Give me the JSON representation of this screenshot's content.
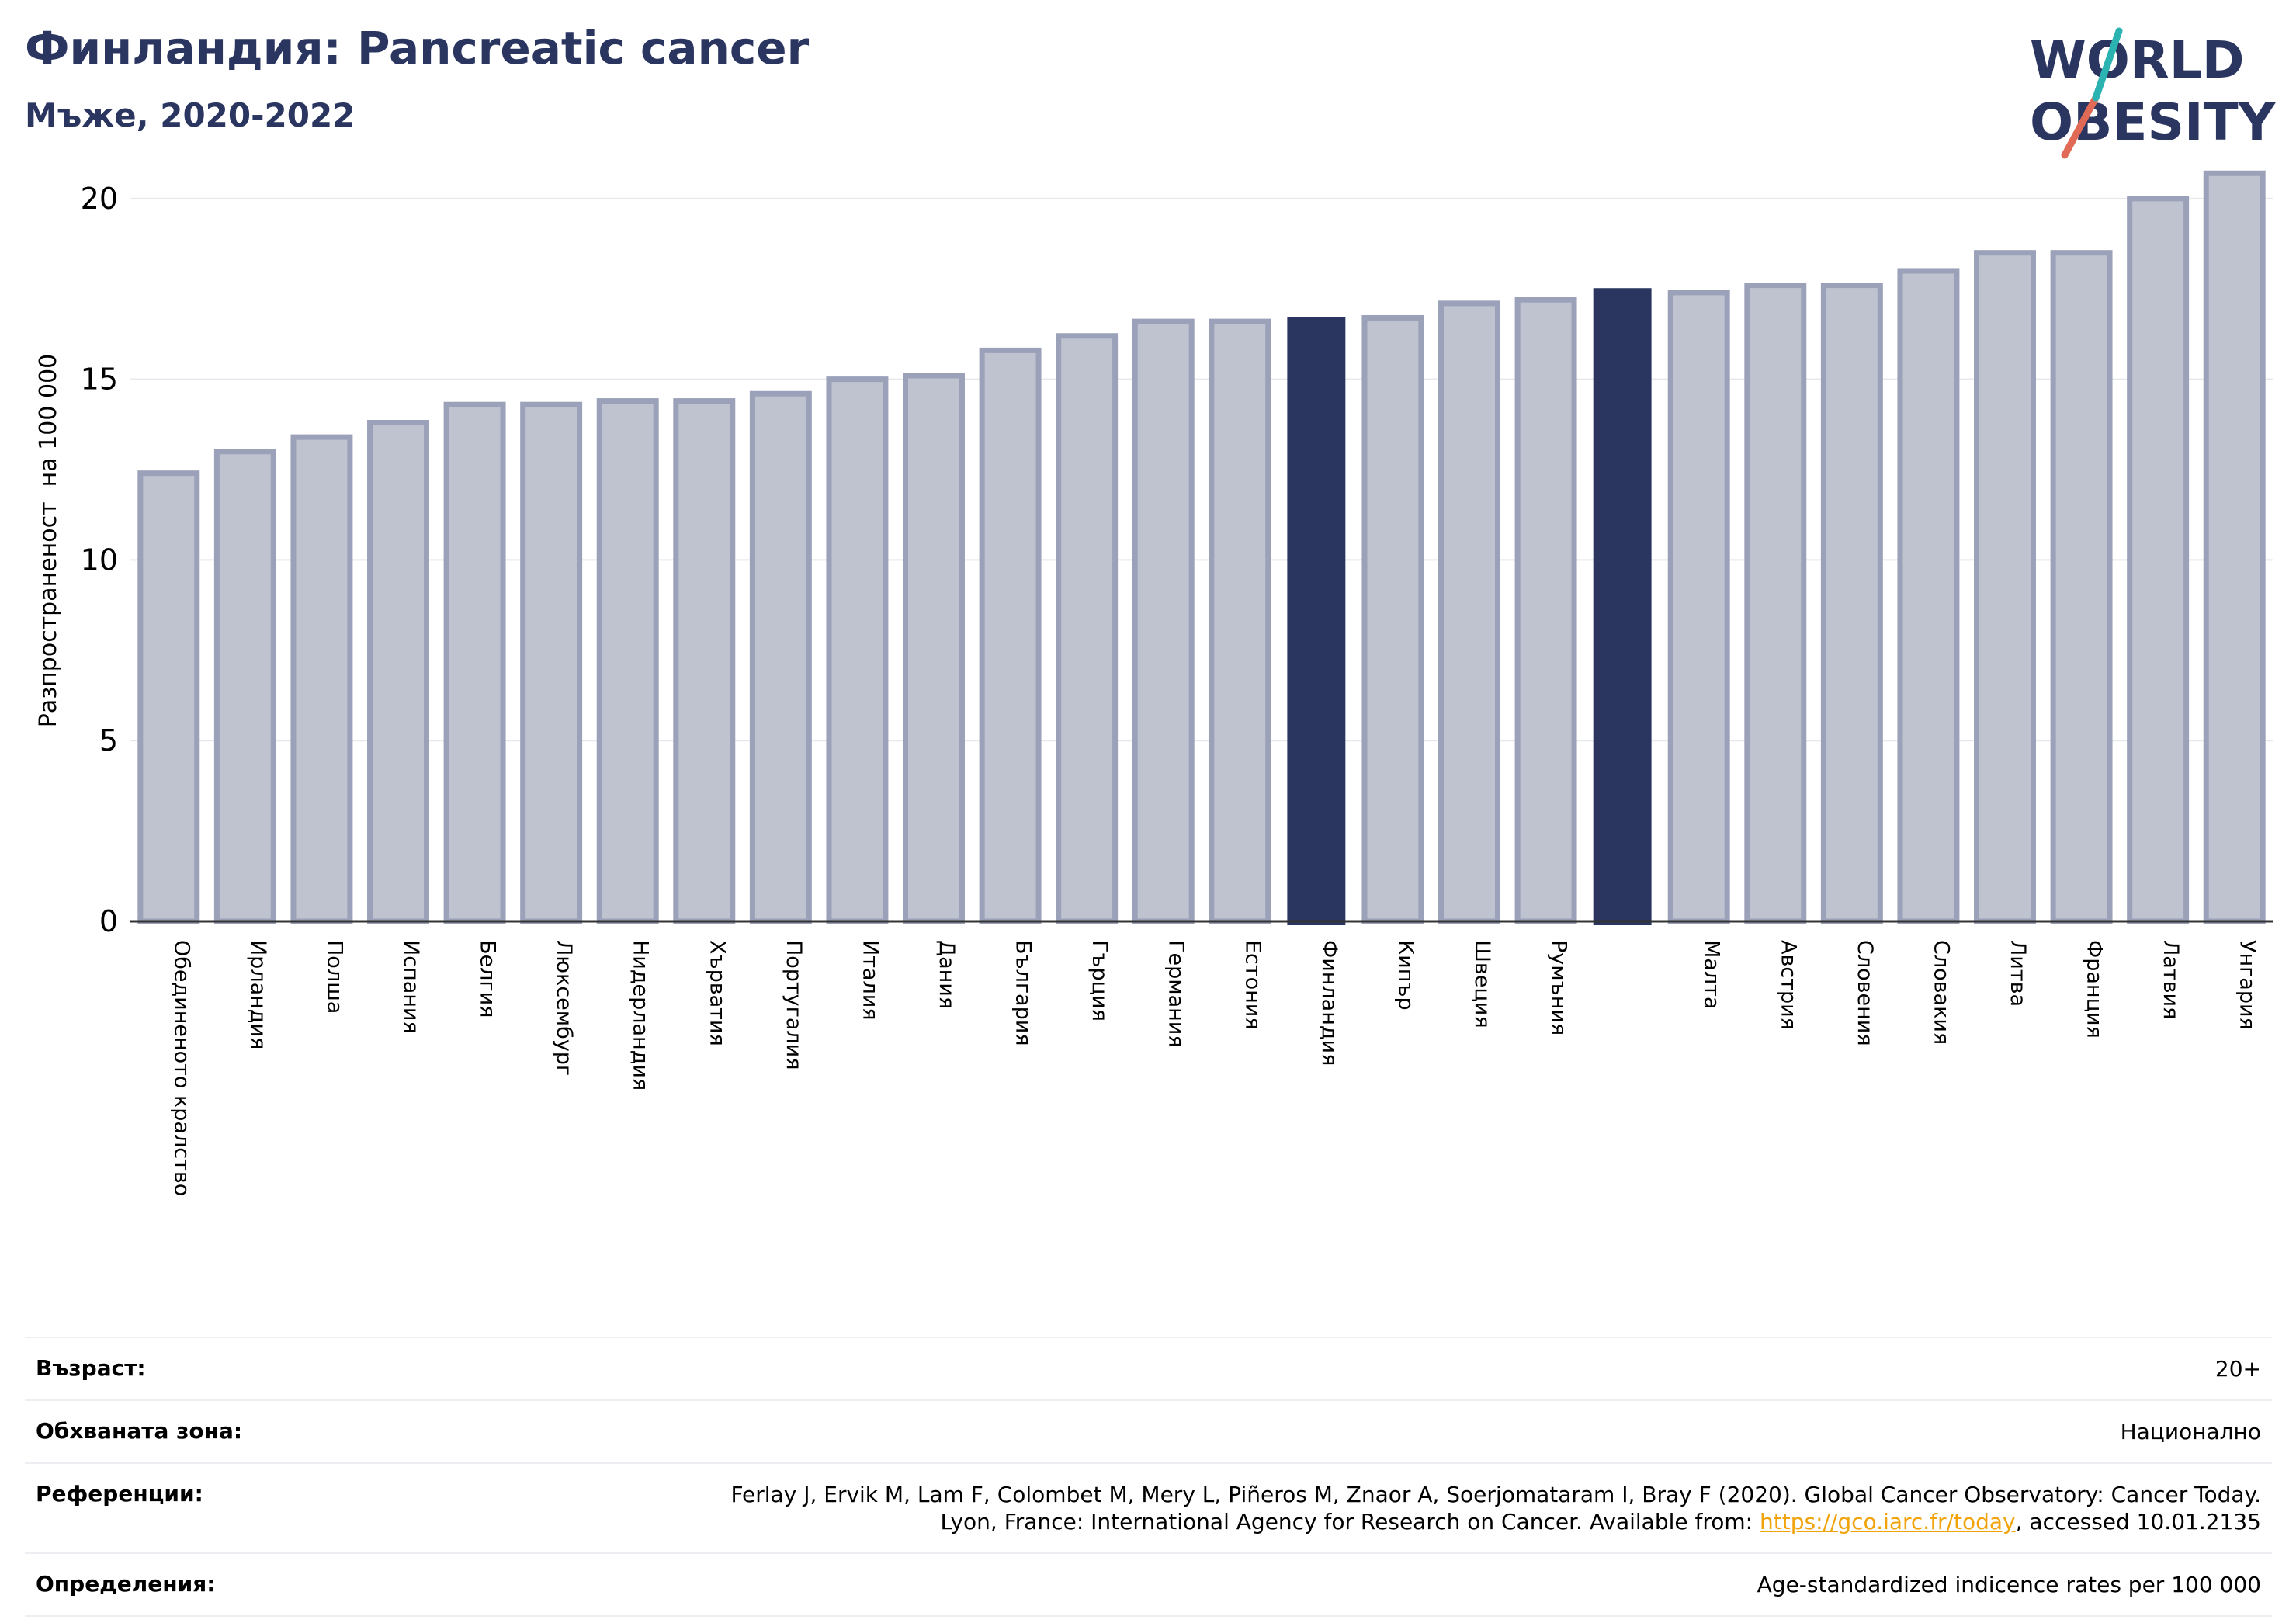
{
  "header": {
    "title": "Финландия: Pancreatic cancer",
    "subtitle": "Мъже, 2020-2022"
  },
  "logo": {
    "line1": "WORLD",
    "line2": "OBESITY"
  },
  "colors": {
    "bar": "#bfc3d0",
    "bar_stroke": "#9aa1b8",
    "highlight": "#2a3560",
    "grid": "#e6e8ee",
    "text": "#000000"
  },
  "chart_data": {
    "type": "bar",
    "ylabel": "Разпространеност  на 100 000",
    "ylim": [
      0,
      21.5
    ],
    "yticks": [
      0,
      5,
      10,
      15,
      20
    ],
    "grid": true,
    "categories": [
      "Обединеното кралство",
      "Ирландия",
      "Полша",
      "Испания",
      "Белгия",
      "Люксембург",
      "Нидерландия",
      "Хърватия",
      "Португалия",
      "Италия",
      "Дания",
      "България",
      "Гърция",
      "Германия",
      "Естония",
      "Финландия",
      "Кипър",
      "Швеция",
      "Румъния",
      "",
      "Малта",
      "Австрия",
      "Словения",
      "Словакия",
      "Литва",
      "Франция",
      "Латвия",
      "Унгария"
    ],
    "values": [
      12.4,
      13.0,
      13.4,
      13.8,
      14.3,
      14.3,
      14.4,
      14.4,
      14.6,
      15.0,
      15.1,
      15.8,
      16.2,
      16.6,
      16.6,
      16.7,
      16.7,
      17.1,
      17.2,
      17.5,
      17.4,
      17.6,
      17.6,
      18.0,
      18.5,
      18.5,
      20.0,
      20.7
    ],
    "highlighted": [
      15,
      19
    ]
  },
  "info": {
    "rows": [
      {
        "label": "Възраст:",
        "value": "20+"
      },
      {
        "label": "Обхваната зона:",
        "value": "Национално"
      },
      {
        "label": "Референции:",
        "value_line1": "Ferlay J, Ervik M, Lam F, Colombet M, Mery L, Piñeros M, Znaor A, Soerjomataram I, Bray F (2020). Global Cancer Observatory: Cancer Today.",
        "value_line2_prefix": "Lyon, France: International Agency for Research on Cancer. Available from: ",
        "value_link": "https://gco.iarc.fr/today",
        "value_line2_suffix": ", accessed 10.01.2135"
      },
      {
        "label": "Определения:",
        "value": "Age-standardized indicence rates per 100 000"
      }
    ]
  }
}
